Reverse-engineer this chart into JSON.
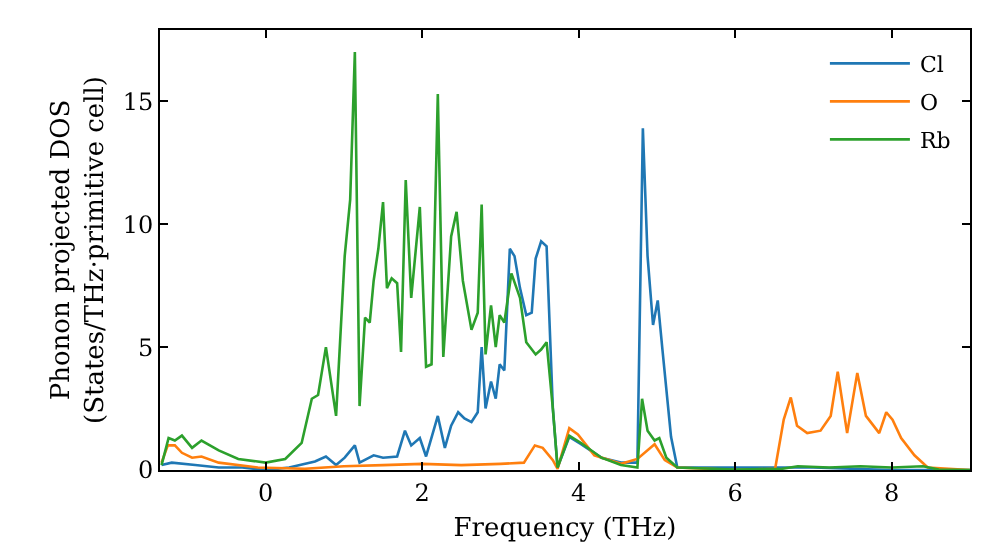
{
  "chart_data": {
    "type": "line",
    "xlabel": "Frequency (THz)",
    "ylabel": "Phonon projected DOS\n(States/THz·primitive cell)",
    "xlim": [
      -1.35,
      9.0
    ],
    "ylim": [
      0,
      17.9
    ],
    "xticks": [
      0,
      2,
      4,
      6,
      8
    ],
    "yticks": [
      0,
      5,
      10,
      15
    ],
    "grid": false,
    "legend": "top right",
    "marker": "none",
    "line_style": "solid",
    "series": [
      {
        "name": "Cl",
        "color": "#1f77b4",
        "x": [
          -1.33,
          -1.2,
          -0.9,
          -0.6,
          -0.3,
          0,
          0.3,
          0.63,
          0.77,
          0.9,
          1.01,
          1.14,
          1.2,
          1.38,
          1.5,
          1.68,
          1.78,
          1.86,
          1.97,
          2.05,
          2.2,
          2.29,
          2.37,
          2.46,
          2.54,
          2.63,
          2.71,
          2.76,
          2.81,
          2.88,
          2.94,
          2.99,
          3.05,
          3.12,
          3.18,
          3.25,
          3.33,
          3.4,
          3.45,
          3.52,
          3.59,
          3.67,
          3.73,
          3.88,
          4.03,
          4.29,
          4.54,
          4.75,
          4.82,
          4.88,
          4.95,
          5.01,
          5.07,
          5.18,
          5.26,
          7.0,
          8.0,
          9.0
        ],
        "values": [
          0.2,
          0.3,
          0.2,
          0.1,
          0.1,
          0,
          0.1,
          0.35,
          0.55,
          0.2,
          0.5,
          1.0,
          0.3,
          0.6,
          0.5,
          0.55,
          1.6,
          1.0,
          1.3,
          0.55,
          2.2,
          0.9,
          1.8,
          2.35,
          2.1,
          1.95,
          2.35,
          5.0,
          2.5,
          3.6,
          2.9,
          4.3,
          4.05,
          9.0,
          8.7,
          7.4,
          6.3,
          6.4,
          8.6,
          9.3,
          9.1,
          2.5,
          0.1,
          1.35,
          1.05,
          0.5,
          0.3,
          0.3,
          13.9,
          8.7,
          5.9,
          6.9,
          4.9,
          1.35,
          0.1,
          0.1,
          0,
          0
        ]
      },
      {
        "name": "O",
        "color": "#ff7f0e",
        "x": [
          -1.33,
          -1.25,
          -1.16,
          -1.07,
          -0.94,
          -0.82,
          -0.6,
          -0.1,
          0.5,
          1.0,
          1.5,
          2.0,
          2.5,
          3.0,
          3.3,
          3.44,
          3.54,
          3.67,
          3.73,
          3.88,
          3.99,
          4.2,
          4.54,
          4.75,
          4.97,
          5.1,
          5.26,
          6.0,
          6.51,
          6.62,
          6.71,
          6.79,
          6.92,
          7.09,
          7.22,
          7.31,
          7.43,
          7.56,
          7.67,
          7.84,
          7.93,
          8.01,
          8.12,
          8.29,
          8.46,
          9.0
        ],
        "values": [
          0.3,
          1.0,
          1.0,
          0.7,
          0.5,
          0.55,
          0.3,
          0.1,
          0.05,
          0.15,
          0.2,
          0.25,
          0.2,
          0.25,
          0.3,
          1.0,
          0.9,
          0.4,
          0.05,
          1.7,
          1.45,
          0.6,
          0.25,
          0.45,
          1.05,
          0.4,
          0.1,
          0,
          0.05,
          2.05,
          2.95,
          1.8,
          1.5,
          1.6,
          2.2,
          4.0,
          1.5,
          3.95,
          2.2,
          1.5,
          2.35,
          2.05,
          1.3,
          0.6,
          0.1,
          0
        ]
      },
      {
        "name": "Rb",
        "color": "#2ca02c",
        "x": [
          -1.33,
          -1.24,
          -1.16,
          -1.07,
          -0.94,
          -0.82,
          -0.6,
          -0.35,
          0,
          0.25,
          0.46,
          0.59,
          0.67,
          0.77,
          0.9,
          1.01,
          1.08,
          1.14,
          1.2,
          1.27,
          1.33,
          1.38,
          1.44,
          1.5,
          1.55,
          1.61,
          1.68,
          1.73,
          1.79,
          1.86,
          1.97,
          2.05,
          2.12,
          2.2,
          2.27,
          2.37,
          2.44,
          2.52,
          2.63,
          2.71,
          2.76,
          2.81,
          2.88,
          2.94,
          2.99,
          3.05,
          3.14,
          3.25,
          3.33,
          3.45,
          3.52,
          3.59,
          3.67,
          3.73,
          3.88,
          4.03,
          4.29,
          4.54,
          4.75,
          4.81,
          4.88,
          4.97,
          5.03,
          5.12,
          5.26,
          6.0,
          6.6,
          6.8,
          7.2,
          7.6,
          8.0,
          8.4,
          8.6,
          9.0
        ],
        "values": [
          0.2,
          1.3,
          1.2,
          1.4,
          0.9,
          1.2,
          0.8,
          0.45,
          0.3,
          0.45,
          1.1,
          2.9,
          3.05,
          5.0,
          2.2,
          8.7,
          11,
          17.0,
          2.6,
          6.2,
          6.0,
          7.7,
          9.0,
          10.9,
          7.4,
          7.8,
          7.6,
          4.8,
          11.8,
          7.0,
          10.7,
          4.2,
          4.3,
          15.3,
          4.6,
          9.5,
          10.5,
          7.7,
          5.7,
          6.4,
          10.8,
          4.7,
          6.7,
          5.0,
          6.3,
          6.0,
          8.0,
          7.0,
          5.2,
          4.7,
          4.9,
          5.2,
          2.5,
          0.1,
          1.4,
          1.1,
          0.5,
          0.2,
          0.1,
          2.9,
          1.6,
          1.2,
          1.3,
          0.5,
          0.1,
          0.02,
          0.05,
          0.15,
          0.1,
          0.15,
          0.1,
          0.15,
          0.02,
          0
        ]
      }
    ]
  }
}
